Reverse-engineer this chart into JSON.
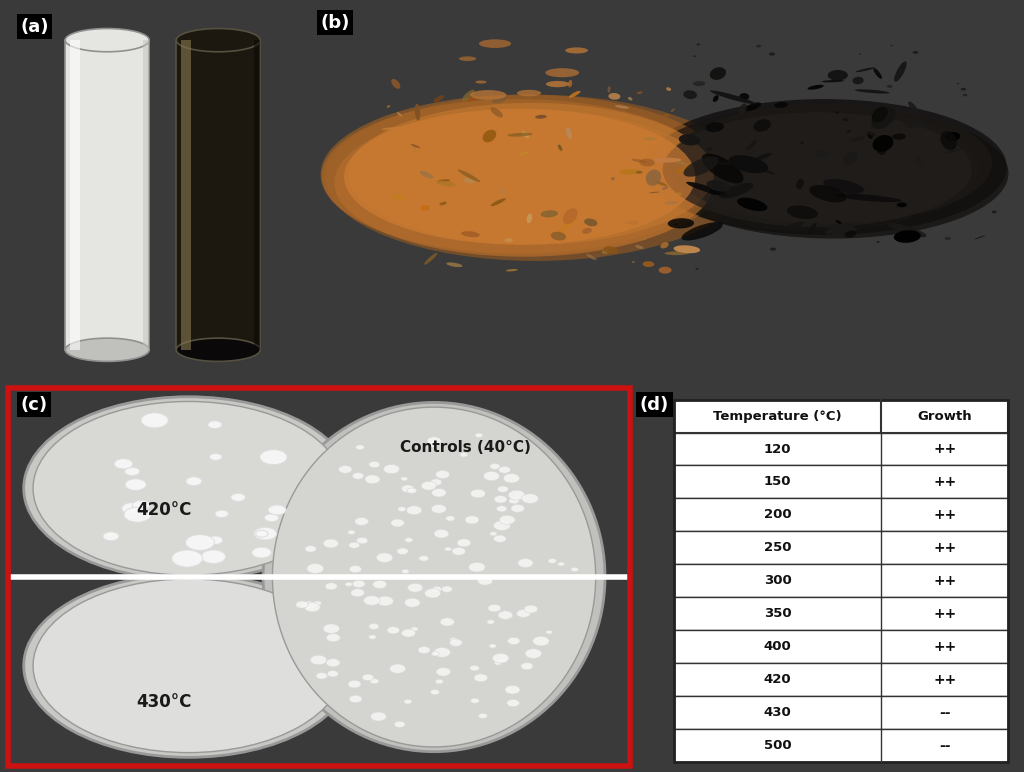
{
  "panel_labels": [
    "(a)",
    "(b)",
    "(c)",
    "(d)"
  ],
  "table_header": [
    "Temperature (°C)",
    "Growth"
  ],
  "table_rows": [
    [
      "120",
      "++"
    ],
    [
      "150",
      "++"
    ],
    [
      "200",
      "++"
    ],
    [
      "250",
      "++"
    ],
    [
      "300",
      "++"
    ],
    [
      "350",
      "++"
    ],
    [
      "400",
      "++"
    ],
    [
      "420",
      "++"
    ],
    [
      "430",
      "--"
    ],
    [
      "500",
      "--"
    ]
  ],
  "panel_c_labels": [
    "420°C",
    "Controls (40°C)",
    "430°C"
  ],
  "c_border_color": "#cc1111",
  "overall_bg": "#3a3a3a",
  "panel_a_bg": "#a8a8a0",
  "panel_b_bg": "#d8d8d0",
  "panel_c_bg": "#7a7a80",
  "panel_d_bg": "#ffffff",
  "tube_left_color": "#e0e0e0",
  "tube_right_color": "#2a2020",
  "tube_right_highlight": "#8a7060",
  "powder_brown": "#b8782a",
  "powder_black": "#111010",
  "dish_fill": "#dcdcdc",
  "dish_edge": "#aaaaaa",
  "colony_color": "#f5f5f5",
  "colony_edge": "#cccccc"
}
